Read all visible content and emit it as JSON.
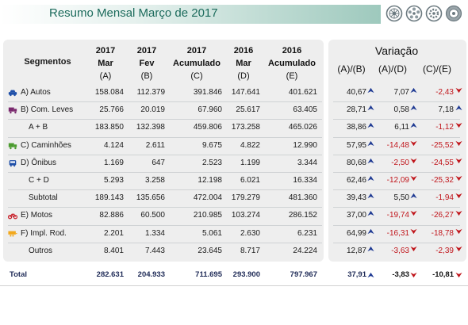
{
  "header": {
    "title": "Resumo Mensal Março de 2017"
  },
  "columns": {
    "segment": "Segmentos",
    "c1": {
      "l1": "2017",
      "l2": "Mar",
      "l3": "(A)"
    },
    "c2": {
      "l1": "2017",
      "l2": "Fev",
      "l3": "(B)"
    },
    "c3": {
      "l1": "2017",
      "l2": "Acumulado",
      "l3": "(C)"
    },
    "c4": {
      "l1": "2016",
      "l2": "Mar",
      "l3": "(D)"
    },
    "c5": {
      "l1": "2016",
      "l2": "Acumulado",
      "l3": "(E)"
    },
    "variation": "Variação",
    "v1": "(A)/(B)",
    "v2": "(A)/(D)",
    "v3": "(C)/(E)"
  },
  "rows": [
    {
      "label": "A) Autos",
      "icon": "car-icon",
      "c1": "158.084",
      "c2": "112.379",
      "c3": "391.846",
      "c4": "147.641",
      "c5": "401.621",
      "v1": "40,67",
      "v1dir": "up",
      "v2": "7,07",
      "v2dir": "up",
      "v3": "-2,43",
      "v3dir": "down"
    },
    {
      "label": "B) Com. Leves",
      "icon": "light-truck-icon",
      "c1": "25.766",
      "c2": "20.019",
      "c3": "67.960",
      "c4": "25.617",
      "c5": "63.405",
      "v1": "28,71",
      "v1dir": "up",
      "v2": "0,58",
      "v2dir": "up",
      "v3": "7,18",
      "v3dir": "up"
    },
    {
      "label": "A + B",
      "icon": "",
      "c1": "183.850",
      "c2": "132.398",
      "c3": "459.806",
      "c4": "173.258",
      "c5": "465.026",
      "v1": "38,86",
      "v1dir": "up",
      "v2": "6,11",
      "v2dir": "up",
      "v3": "-1,12",
      "v3dir": "down"
    },
    {
      "label": "C) Caminhões",
      "icon": "truck-icon",
      "c1": "4.124",
      "c2": "2.611",
      "c3": "9.675",
      "c4": "4.822",
      "c5": "12.990",
      "v1": "57,95",
      "v1dir": "up",
      "v2": "-14,48",
      "v2dir": "down",
      "v3": "-25,52",
      "v3dir": "down"
    },
    {
      "label": "D) Ônibus",
      "icon": "bus-icon",
      "c1": "1.169",
      "c2": "647",
      "c3": "2.523",
      "c4": "1.199",
      "c5": "3.344",
      "v1": "80,68",
      "v1dir": "up",
      "v2": "-2,50",
      "v2dir": "down",
      "v3": "-24,55",
      "v3dir": "down"
    },
    {
      "label": "C + D",
      "icon": "",
      "c1": "5.293",
      "c2": "3.258",
      "c3": "12.198",
      "c4": "6.021",
      "c5": "16.334",
      "v1": "62,46",
      "v1dir": "up",
      "v2": "-12,09",
      "v2dir": "down",
      "v3": "-25,32",
      "v3dir": "down"
    },
    {
      "label": "Subtotal",
      "icon": "",
      "c1": "189.143",
      "c2": "135.656",
      "c3": "472.004",
      "c4": "179.279",
      "c5": "481.360",
      "v1": "39,43",
      "v1dir": "up",
      "v2": "5,50",
      "v2dir": "up",
      "v3": "-1,94",
      "v3dir": "down"
    },
    {
      "label": "E) Motos",
      "icon": "motorcycle-icon",
      "c1": "82.886",
      "c2": "60.500",
      "c3": "210.985",
      "c4": "103.274",
      "c5": "286.152",
      "v1": "37,00",
      "v1dir": "up",
      "v2": "-19,74",
      "v2dir": "down",
      "v3": "-26,27",
      "v3dir": "down"
    },
    {
      "label": "F) Impl. Rod.",
      "icon": "trailer-icon",
      "c1": "2.201",
      "c2": "1.334",
      "c3": "5.061",
      "c4": "2.630",
      "c5": "6.231",
      "v1": "64,99",
      "v1dir": "up",
      "v2": "-16,31",
      "v2dir": "down",
      "v3": "-18,78",
      "v3dir": "down"
    },
    {
      "label": "Outros",
      "icon": "",
      "c1": "8.401",
      "c2": "7.443",
      "c3": "23.645",
      "c4": "8.717",
      "c5": "24.224",
      "v1": "12,87",
      "v1dir": "up",
      "v2": "-3,63",
      "v2dir": "down",
      "v3": "-2,39",
      "v3dir": "down"
    }
  ],
  "total": {
    "label": "Total",
    "c1": "282.631",
    "c2": "204.933",
    "c3": "711.695",
    "c4": "293.900",
    "c5": "797.967",
    "v1": "37,91",
    "v1dir": "up",
    "v2": "-3,83",
    "v2dir": "down",
    "v3": "-10,81",
    "v3dir": "down"
  },
  "colors": {
    "accent": "#1c6b5c",
    "up_arrow": "#1f3a93",
    "down_arrow": "#c0151b",
    "icon_blue": "#1f4fa8",
    "icon_purple": "#7a2a6e",
    "icon_green": "#4b9b2f",
    "icon_red": "#c8202a",
    "icon_orange": "#f2a81c"
  }
}
